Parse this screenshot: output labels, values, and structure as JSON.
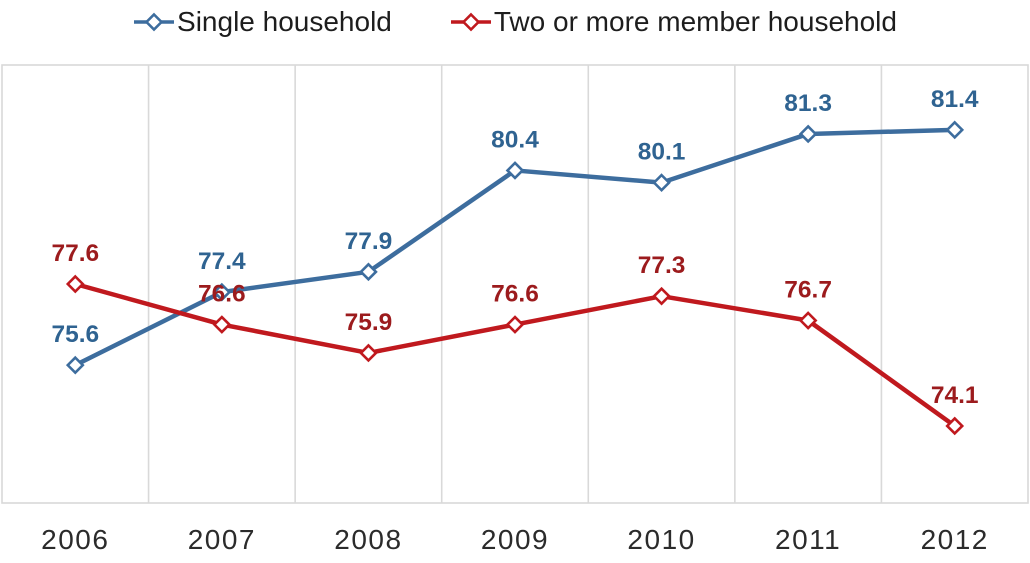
{
  "chart_data": {
    "type": "line",
    "title": "",
    "xlabel": "",
    "ylabel": "",
    "categories": [
      "2006",
      "2007",
      "2008",
      "2009",
      "2010",
      "2011",
      "2012"
    ],
    "series": [
      {
        "name": "Single household",
        "color": "#3D6D9E",
        "label_color": "#2F6391",
        "values": [
          75.6,
          77.4,
          77.9,
          80.4,
          80.1,
          81.3,
          81.4
        ]
      },
      {
        "name": "Two or more member household",
        "color": "#C0191E",
        "label_color": "#9C1B1D",
        "values": [
          77.6,
          76.6,
          75.9,
          76.6,
          77.3,
          76.7,
          74.1
        ]
      }
    ],
    "ylim": [
      72.2,
      83.0
    ],
    "grid": "vertical-only",
    "gridline_color": "#D9D9D9",
    "axis_text_color": "#2B2B2B",
    "legend_position": "top",
    "marker": "diamond-open",
    "data_labels": true
  }
}
